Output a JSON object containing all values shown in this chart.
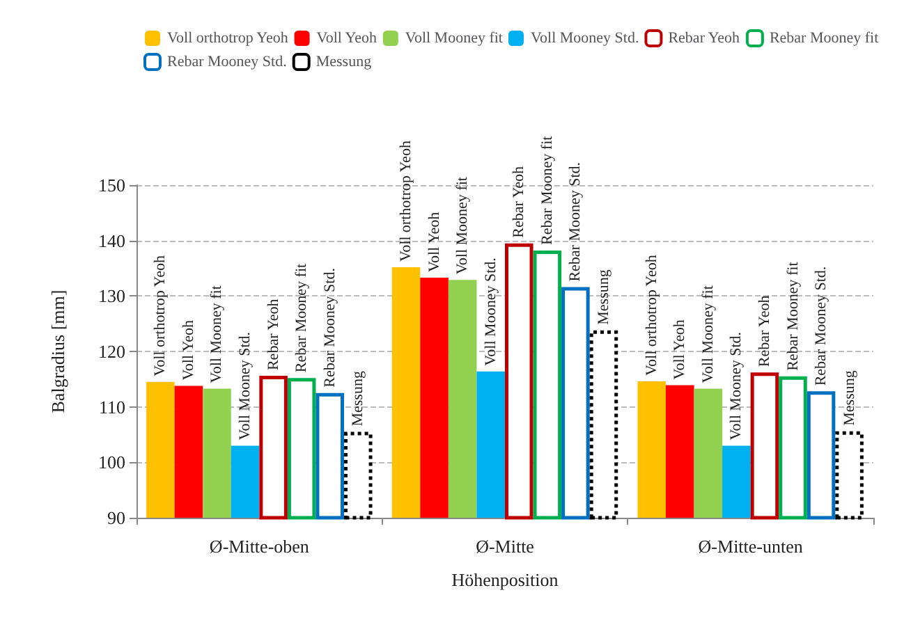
{
  "chart_data": {
    "type": "bar",
    "xlabel": "Höhenposition",
    "ylabel": "Balgradius [mm]",
    "categories": [
      "Ø-Mitte-oben",
      "Ø-Mitte",
      "Ø-Mitte-unten"
    ],
    "series": [
      {
        "name": "Voll orthotrop Yeoh",
        "color": "#ffc000",
        "values": [
          114.5,
          135.2,
          114.6
        ]
      },
      {
        "name": "Voll Yeoh",
        "color": "#ff0000",
        "values": [
          113.8,
          133.3,
          113.9
        ]
      },
      {
        "name": "Voll Mooney fit",
        "color": "#92d050",
        "values": [
          113.3,
          132.9,
          113.3
        ]
      },
      {
        "name": "Voll Mooney Std.",
        "color": "#00b0f0",
        "values": [
          103,
          116.4,
          103
        ]
      },
      {
        "name": "Rebar Yeoh",
        "color": "#c00000",
        "line_style": "solid",
        "values": [
          115.6,
          139.5,
          116.2
        ]
      },
      {
        "name": "Rebar Mooney fit",
        "color": "#00b050",
        "line_style": "solid",
        "values": [
          115.2,
          138.2,
          115.5
        ]
      },
      {
        "name": "Rebar Mooney Std.",
        "color": "#0070c0",
        "line_style": "solid",
        "values": [
          112.5,
          131.6,
          112.8
        ]
      },
      {
        "name": "Messung",
        "color": "#000000",
        "line_style": "dotted",
        "values": [
          105.5,
          123.8,
          105.6
        ]
      }
    ],
    "ylim": [
      90,
      150
    ],
    "yticks": [
      90,
      100,
      110,
      120,
      130,
      140,
      150
    ],
    "grid": "y",
    "legend": "top"
  }
}
